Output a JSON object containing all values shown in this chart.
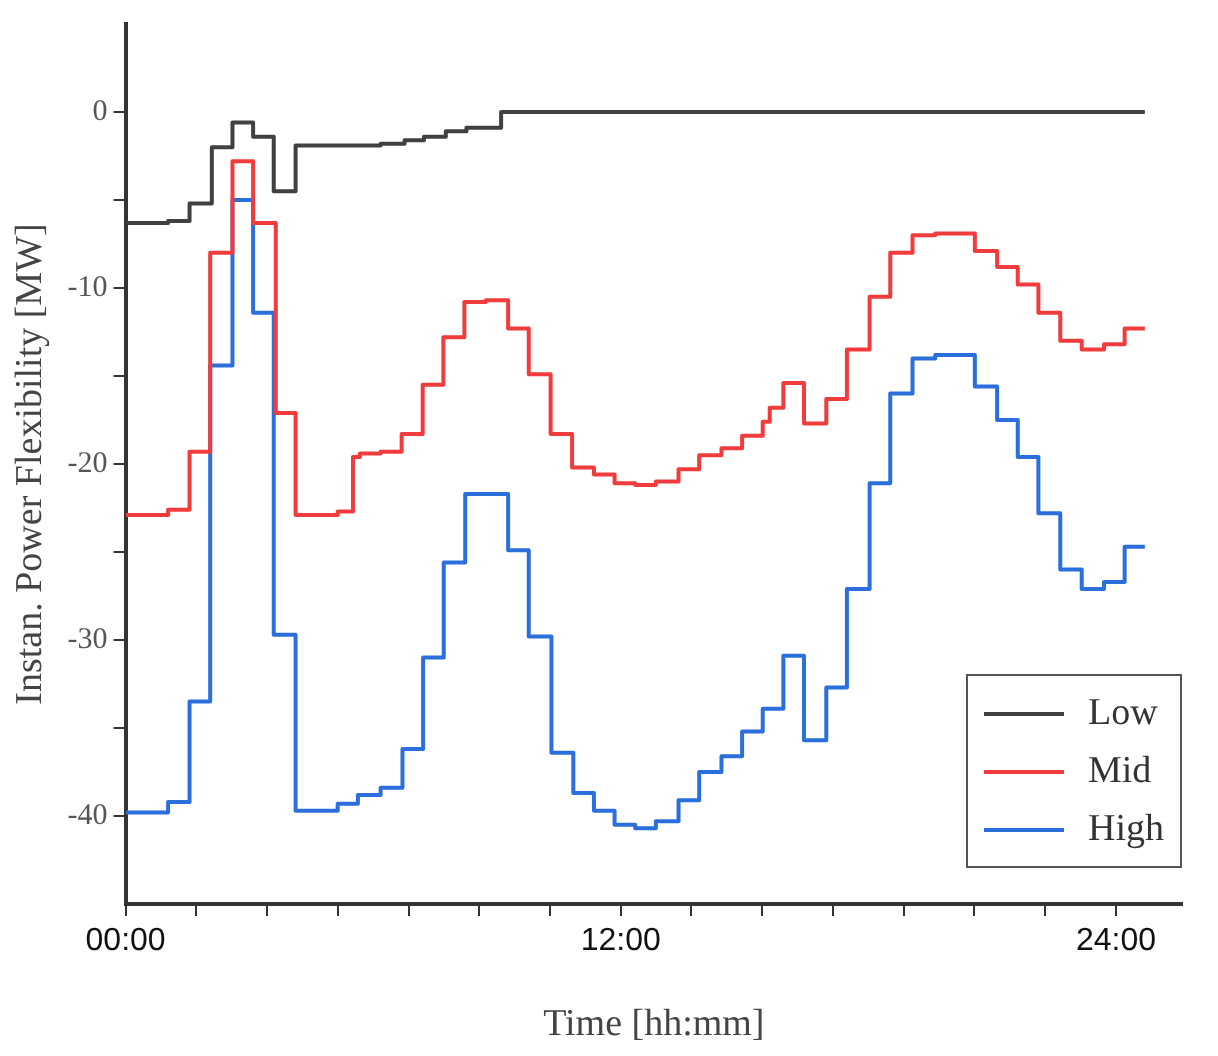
{
  "chart_data": {
    "type": "step",
    "xlabel": "Time [hh:mm]",
    "ylabel": "Instan. Power Flexibility [MW]",
    "xlim": [
      0,
      25.6
    ],
    "xticks": [
      {
        "value": 0,
        "label": "00:00"
      },
      {
        "value": 1.71,
        "label": null
      },
      {
        "value": 3.43,
        "label": null
      },
      {
        "value": 5.14,
        "label": null
      },
      {
        "value": 6.86,
        "label": null
      },
      {
        "value": 8.57,
        "label": null
      },
      {
        "value": 10.29,
        "label": null
      },
      {
        "value": 12,
        "label": "12:00"
      },
      {
        "value": 13.71,
        "label": null
      },
      {
        "value": 15.43,
        "label": null
      },
      {
        "value": 17.14,
        "label": null
      },
      {
        "value": 18.86,
        "label": null
      },
      {
        "value": 20.57,
        "label": null
      },
      {
        "value": 22.29,
        "label": null
      },
      {
        "value": 24,
        "label": "24:00"
      }
    ],
    "ylim": [
      -45,
      5
    ],
    "yticks": [
      {
        "value": -40,
        "label": "-40"
      },
      {
        "value": -35,
        "label": null
      },
      {
        "value": -30,
        "label": "-30"
      },
      {
        "value": -25,
        "label": null
      },
      {
        "value": -20,
        "label": "-20"
      },
      {
        "value": -15,
        "label": null
      },
      {
        "value": -10,
        "label": "-10"
      },
      {
        "value": -5,
        "label": null
      },
      {
        "value": 0,
        "label": "0"
      }
    ],
    "grid": false,
    "legend": "bottom right",
    "marker": "none",
    "line_style": "solid",
    "series": [
      {
        "name": "Low",
        "color": "#404040",
        "x": [
          0,
          1.03,
          1.55,
          2.09,
          2.59,
          3.09,
          3.59,
          4.12,
          6.18,
          6.76,
          7.23,
          7.76,
          8.26,
          9.1,
          24.7
        ],
        "values": [
          -6.3,
          -6.2,
          -5.2,
          -2.0,
          -0.6,
          -1.4,
          -4.5,
          -1.9,
          -1.8,
          -1.6,
          -1.4,
          -1.1,
          -0.9,
          0,
          0
        ]
      },
      {
        "name": "Mid",
        "color": "#f03c3c",
        "x": [
          0,
          1.03,
          1.55,
          2.05,
          2.59,
          3.09,
          3.64,
          4.12,
          5.14,
          5.51,
          5.68,
          6.18,
          6.69,
          7.2,
          7.7,
          8.21,
          8.73,
          9.27,
          9.77,
          10.3,
          10.82,
          11.35,
          11.85,
          12.35,
          12.85,
          13.4,
          13.9,
          14.44,
          14.94,
          15.44,
          15.61,
          15.94,
          16.44,
          16.98,
          17.48,
          18.03,
          18.53,
          19.07,
          19.62,
          20.58,
          21.12,
          21.62,
          22.12,
          22.65,
          23.17,
          23.71,
          24.21,
          24.7
        ],
        "values": [
          -22.9,
          -22.6,
          -19.3,
          -8.0,
          -2.8,
          -6.3,
          -17.1,
          -22.9,
          -22.7,
          -19.6,
          -19.4,
          -19.3,
          -18.3,
          -15.5,
          -12.8,
          -10.8,
          -10.7,
          -12.3,
          -14.9,
          -18.3,
          -20.2,
          -20.6,
          -21.1,
          -21.2,
          -21.0,
          -20.3,
          -19.5,
          -19.1,
          -18.4,
          -17.6,
          -16.8,
          -15.4,
          -17.7,
          -16.3,
          -13.5,
          -10.5,
          -8.0,
          -7.0,
          -6.9,
          -7.9,
          -8.8,
          -9.8,
          -11.4,
          -13.0,
          -13.5,
          -13.2,
          -12.3,
          -12.3
        ]
      },
      {
        "name": "High",
        "color": "#2a6fdb",
        "x": [
          0,
          1.03,
          1.55,
          2.05,
          2.59,
          3.09,
          3.59,
          4.12,
          5.14,
          5.63,
          6.18,
          6.71,
          7.21,
          7.71,
          8.23,
          8.76,
          9.27,
          9.77,
          10.32,
          10.85,
          11.35,
          11.85,
          12.35,
          12.85,
          13.4,
          13.9,
          14.44,
          14.94,
          15.44,
          15.94,
          16.44,
          16.98,
          17.48,
          18.03,
          18.53,
          19.07,
          19.62,
          20.58,
          21.12,
          21.62,
          22.12,
          22.65,
          23.17,
          23.71,
          24.21,
          24.7
        ],
        "values": [
          -39.8,
          -39.2,
          -33.5,
          -14.4,
          -5.0,
          -11.4,
          -29.7,
          -39.7,
          -39.3,
          -38.8,
          -38.4,
          -36.2,
          -31.0,
          -25.6,
          -21.7,
          -21.7,
          -24.9,
          -29.8,
          -36.4,
          -38.7,
          -39.7,
          -40.5,
          -40.7,
          -40.3,
          -39.1,
          -37.5,
          -36.6,
          -35.2,
          -33.9,
          -30.9,
          -35.7,
          -32.7,
          -27.1,
          -21.1,
          -16.0,
          -14.0,
          -13.8,
          -15.6,
          -17.5,
          -19.6,
          -22.8,
          -26.0,
          -27.1,
          -26.7,
          -24.7,
          -24.7
        ]
      }
    ]
  }
}
